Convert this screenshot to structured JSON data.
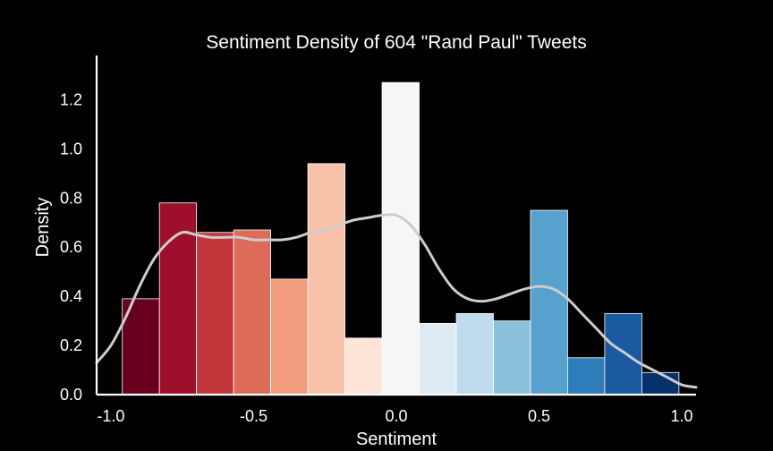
{
  "chart_data": {
    "type": "bar",
    "title": "Sentiment Density of 604 \"Rand Paul\" Tweets",
    "xlabel": "Sentiment",
    "ylabel": "Density",
    "xlim": [
      -1.05,
      1.05
    ],
    "ylim": [
      0,
      1.38
    ],
    "xticks": [
      -1.0,
      -0.5,
      0.0,
      0.5,
      1.0
    ],
    "xtick_labels": [
      "-1.0",
      "-0.5",
      "0.0",
      "0.5",
      "1.0"
    ],
    "yticks": [
      0.0,
      0.2,
      0.4,
      0.6,
      0.8,
      1.0,
      1.2
    ],
    "ytick_labels": [
      "0.0",
      "0.2",
      "0.4",
      "0.6",
      "0.8",
      "1.0",
      "1.2"
    ],
    "grid": false,
    "bins": [
      {
        "x0": -0.96,
        "x1": -0.83,
        "value": 0.39,
        "color": "#67001f"
      },
      {
        "x0": -0.83,
        "x1": -0.7,
        "value": 0.78,
        "color": "#9d0f2b"
      },
      {
        "x0": -0.7,
        "x1": -0.57,
        "value": 0.66,
        "color": "#c2373a"
      },
      {
        "x0": -0.57,
        "x1": -0.44,
        "value": 0.67,
        "color": "#dc6b57"
      },
      {
        "x0": -0.44,
        "x1": -0.31,
        "value": 0.47,
        "color": "#f09c7d"
      },
      {
        "x0": -0.31,
        "x1": -0.18,
        "value": 0.94,
        "color": "#f9c2a8"
      },
      {
        "x0": -0.18,
        "x1": -0.05,
        "value": 0.23,
        "color": "#fde5d8"
      },
      {
        "x0": -0.05,
        "x1": 0.08,
        "value": 1.27,
        "color": "#f7f6f5"
      },
      {
        "x0": 0.08,
        "x1": 0.21,
        "value": 0.29,
        "color": "#deebf4"
      },
      {
        "x0": 0.21,
        "x1": 0.34,
        "value": 0.33,
        "color": "#bedcee"
      },
      {
        "x0": 0.34,
        "x1": 0.47,
        "value": 0.3,
        "color": "#8cc1de"
      },
      {
        "x0": 0.47,
        "x1": 0.6,
        "value": 0.75,
        "color": "#58a0cd"
      },
      {
        "x0": 0.6,
        "x1": 0.73,
        "value": 0.15,
        "color": "#2f7db9"
      },
      {
        "x0": 0.73,
        "x1": 0.86,
        "value": 0.33,
        "color": "#1a5aa0"
      },
      {
        "x0": 0.86,
        "x1": 0.99,
        "value": 0.09,
        "color": "#08306b"
      }
    ],
    "kde": {
      "color": "#cccccc",
      "x": [
        -1.05,
        -1.0,
        -0.95,
        -0.9,
        -0.85,
        -0.8,
        -0.75,
        -0.7,
        -0.65,
        -0.6,
        -0.55,
        -0.5,
        -0.45,
        -0.4,
        -0.35,
        -0.3,
        -0.25,
        -0.2,
        -0.15,
        -0.1,
        -0.05,
        0.0,
        0.05,
        0.1,
        0.15,
        0.2,
        0.25,
        0.3,
        0.35,
        0.4,
        0.45,
        0.5,
        0.55,
        0.6,
        0.65,
        0.7,
        0.75,
        0.8,
        0.85,
        0.9,
        0.95,
        1.0,
        1.05
      ],
      "y": [
        0.13,
        0.2,
        0.31,
        0.44,
        0.55,
        0.62,
        0.66,
        0.65,
        0.64,
        0.64,
        0.64,
        0.63,
        0.63,
        0.63,
        0.64,
        0.66,
        0.67,
        0.69,
        0.71,
        0.72,
        0.73,
        0.73,
        0.69,
        0.61,
        0.51,
        0.43,
        0.39,
        0.38,
        0.39,
        0.41,
        0.43,
        0.44,
        0.43,
        0.39,
        0.33,
        0.27,
        0.21,
        0.17,
        0.13,
        0.1,
        0.07,
        0.04,
        0.03
      ]
    }
  }
}
